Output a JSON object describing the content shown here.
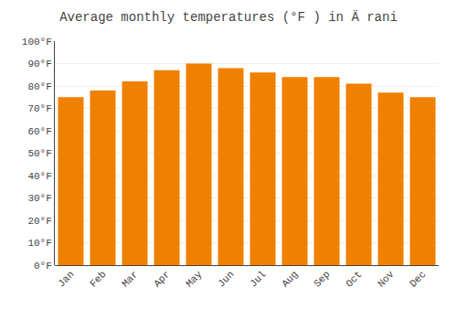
{
  "chart_data": {
    "type": "bar",
    "title": "Average monthly temperatures (°F ) in Ä rani",
    "categories": [
      "Jan",
      "Feb",
      "Mar",
      "Apr",
      "May",
      "Jun",
      "Jul",
      "Aug",
      "Sep",
      "Oct",
      "Nov",
      "Dec"
    ],
    "values": [
      75,
      78,
      82,
      87,
      90,
      88,
      86,
      84,
      84,
      81,
      77,
      75
    ],
    "color": "#F08000",
    "ylim": [
      0,
      100
    ],
    "yticks": [
      {
        "value": 0,
        "label": "0°F"
      },
      {
        "value": 10,
        "label": "10°F"
      },
      {
        "value": 20,
        "label": "20°F"
      },
      {
        "value": 30,
        "label": "30°F"
      },
      {
        "value": 40,
        "label": "40°F"
      },
      {
        "value": 50,
        "label": "50°F"
      },
      {
        "value": 60,
        "label": "60°F"
      },
      {
        "value": 70,
        "label": "70°F"
      },
      {
        "value": 80,
        "label": "80°F"
      },
      {
        "value": 90,
        "label": "90°F"
      },
      {
        "value": 100,
        "label": "100°F"
      }
    ],
    "grid": true
  }
}
